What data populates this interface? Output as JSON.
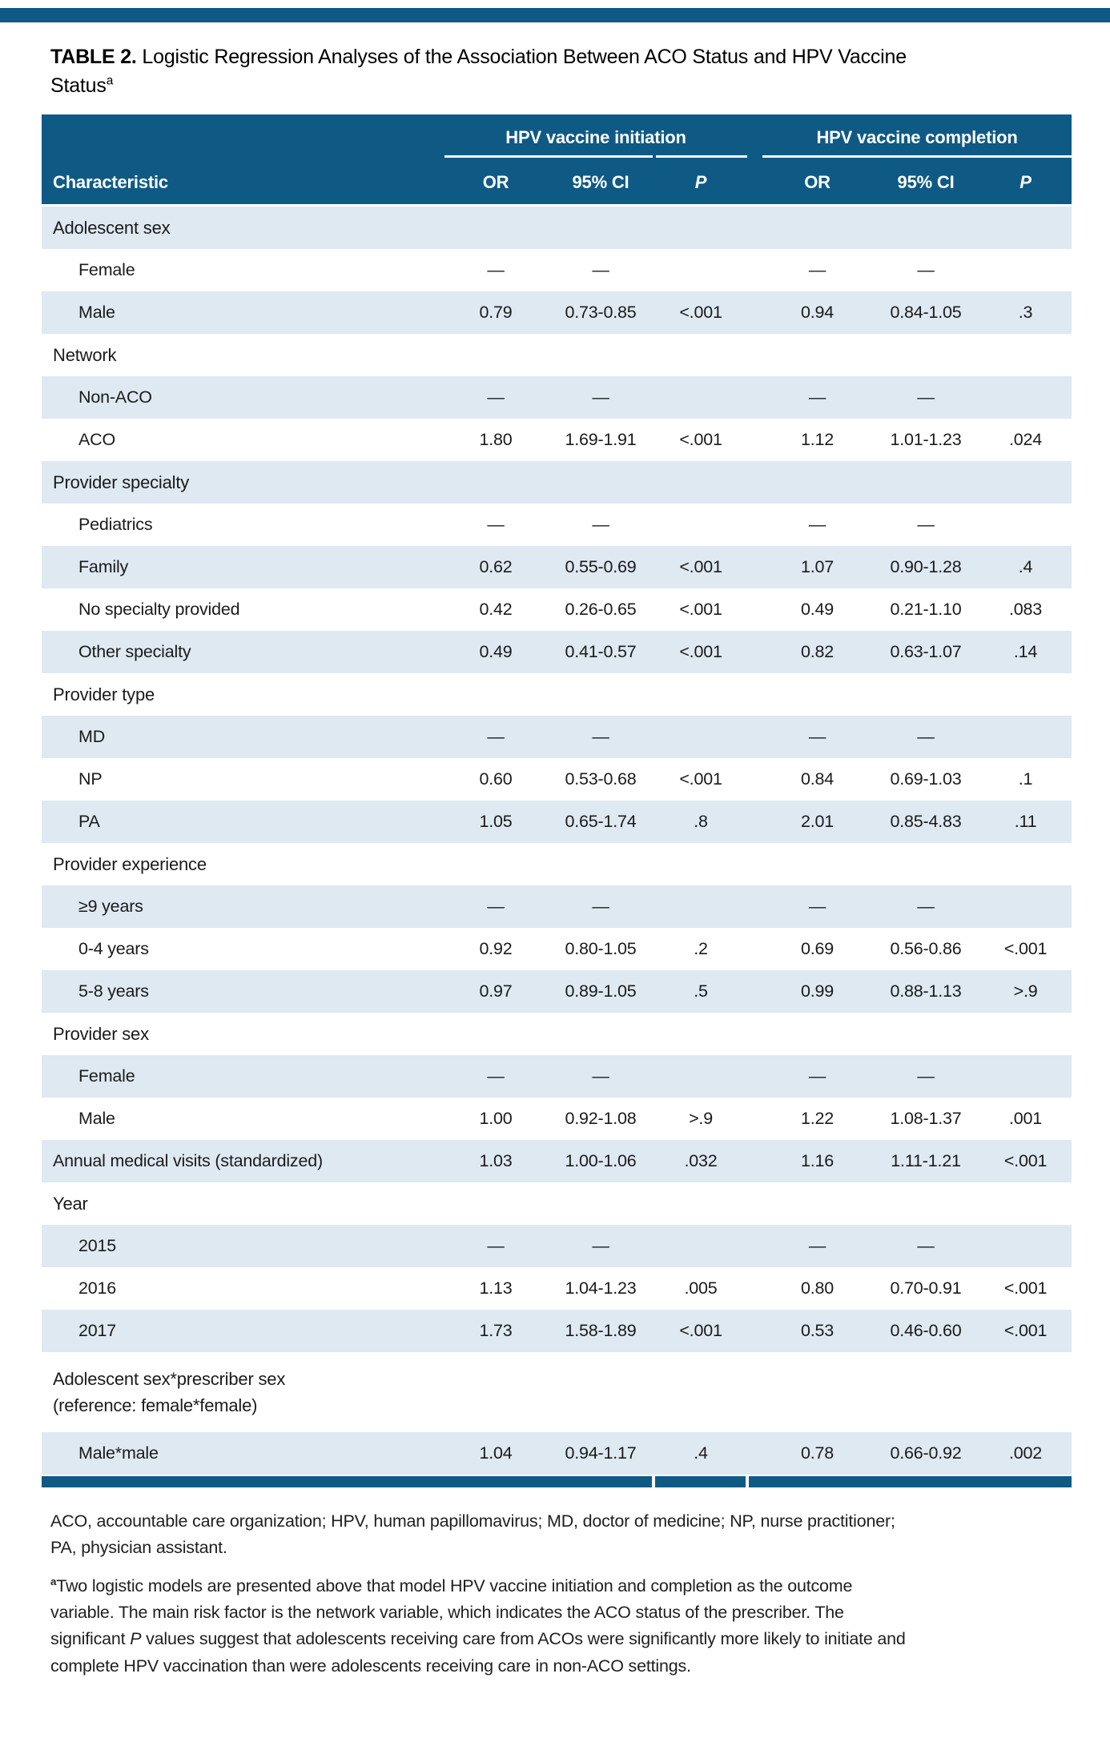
{
  "colors": {
    "header_blue": "#0E5A85",
    "row_stripe": "#DEE9F2"
  },
  "table": {
    "label": "TABLE 2.",
    "title": "Logistic Regression Analyses of the Association Between ACO Status and HPV Vaccine Status",
    "title_footnote_marker": "a",
    "column_groups": [
      "HPV vaccine initiation",
      "HPV vaccine completion"
    ],
    "columns": {
      "characteristic": "Characteristic",
      "or": "OR",
      "ci": "95% CI",
      "p": "P"
    },
    "rows": [
      {
        "type": "group",
        "label": "Adolescent sex"
      },
      {
        "type": "item",
        "label": "Female",
        "values": [
          "—",
          "—",
          "",
          "—",
          "—",
          ""
        ]
      },
      {
        "type": "item",
        "label": "Male",
        "values": [
          "0.79",
          "0.73-0.85",
          "<.001",
          "0.94",
          "0.84-1.05",
          ".3"
        ]
      },
      {
        "type": "group",
        "label": "Network"
      },
      {
        "type": "item",
        "label": "Non-ACO",
        "values": [
          "—",
          "—",
          "",
          "—",
          "—",
          ""
        ]
      },
      {
        "type": "item",
        "label": "ACO",
        "values": [
          "1.80",
          "1.69-1.91",
          "<.001",
          "1.12",
          "1.01-1.23",
          ".024"
        ]
      },
      {
        "type": "group",
        "label": "Provider specialty"
      },
      {
        "type": "item",
        "label": "Pediatrics",
        "values": [
          "—",
          "—",
          "",
          "—",
          "—",
          ""
        ]
      },
      {
        "type": "item",
        "label": "Family",
        "values": [
          "0.62",
          "0.55-0.69",
          "<.001",
          "1.07",
          "0.90-1.28",
          ".4"
        ]
      },
      {
        "type": "item",
        "label": "No specialty provided",
        "values": [
          "0.42",
          "0.26-0.65",
          "<.001",
          "0.49",
          "0.21-1.10",
          ".083"
        ]
      },
      {
        "type": "item",
        "label": "Other specialty",
        "values": [
          "0.49",
          "0.41-0.57",
          "<.001",
          "0.82",
          "0.63-1.07",
          ".14"
        ]
      },
      {
        "type": "group",
        "label": "Provider type"
      },
      {
        "type": "item",
        "label": "MD",
        "values": [
          "—",
          "—",
          "",
          "—",
          "—",
          ""
        ]
      },
      {
        "type": "item",
        "label": "NP",
        "values": [
          "0.60",
          "0.53-0.68",
          "<.001",
          "0.84",
          "0.69-1.03",
          ".1"
        ]
      },
      {
        "type": "item",
        "label": "PA",
        "values": [
          "1.05",
          "0.65-1.74",
          ".8",
          "2.01",
          "0.85-4.83",
          ".11"
        ]
      },
      {
        "type": "group",
        "label": "Provider experience"
      },
      {
        "type": "item",
        "label": "≥9 years",
        "values": [
          "—",
          "—",
          "",
          "—",
          "—",
          ""
        ]
      },
      {
        "type": "item",
        "label": "0-4 years",
        "values": [
          "0.92",
          "0.80-1.05",
          ".2",
          "0.69",
          "0.56-0.86",
          "<.001"
        ]
      },
      {
        "type": "item",
        "label": "5-8 years",
        "values": [
          "0.97",
          "0.89-1.05",
          ".5",
          "0.99",
          "0.88-1.13",
          ">.9"
        ]
      },
      {
        "type": "group",
        "label": "Provider sex"
      },
      {
        "type": "item",
        "label": "Female",
        "values": [
          "—",
          "—",
          "",
          "—",
          "—",
          ""
        ]
      },
      {
        "type": "item",
        "label": "Male",
        "values": [
          "1.00",
          "0.92-1.08",
          ">.9",
          "1.22",
          "1.08-1.37",
          ".001"
        ]
      },
      {
        "type": "data",
        "label": "Annual medical visits (standardized)",
        "values": [
          "1.03",
          "1.00-1.06",
          ".032",
          "1.16",
          "1.11-1.21",
          "<.001"
        ]
      },
      {
        "type": "group",
        "label": "Year"
      },
      {
        "type": "item",
        "label": "2015",
        "values": [
          "—",
          "—",
          "",
          "—",
          "—",
          ""
        ]
      },
      {
        "type": "item",
        "label": "2016",
        "values": [
          "1.13",
          "1.04-1.23",
          ".005",
          "0.80",
          "0.70-0.91",
          "<.001"
        ]
      },
      {
        "type": "item",
        "label": "2017",
        "values": [
          "1.73",
          "1.58-1.89",
          "<.001",
          "0.53",
          "0.46-0.60",
          "<.001"
        ]
      },
      {
        "type": "group2",
        "label": "Adolescent sex*prescriber sex",
        "label2": "(reference: female*female)"
      },
      {
        "type": "item",
        "label": "Male*male",
        "values": [
          "1.04",
          "0.94-1.17",
          ".4",
          "0.78",
          "0.66-0.92",
          ".002"
        ]
      }
    ],
    "footnotes": {
      "abbreviations": "ACO, accountable care organization; HPV, human papillomavirus; MD, doctor of medicine; NP, nurse practitioner; PA, physician assistant.",
      "note_marker": "a",
      "note_segments": [
        {
          "italic": false,
          "text": "Two logistic models are presented above that model HPV vaccine initiation and completion as the outcome variable. The main risk factor is the network variable, which indicates the ACO status of the prescriber. The significant "
        },
        {
          "italic": true,
          "text": "P"
        },
        {
          "italic": false,
          "text": " values suggest that adolescents receiving care from ACOs were significantly more likely to initiate and complete HPV vaccination than were adolescents receiving care in non-ACO settings."
        }
      ]
    }
  }
}
